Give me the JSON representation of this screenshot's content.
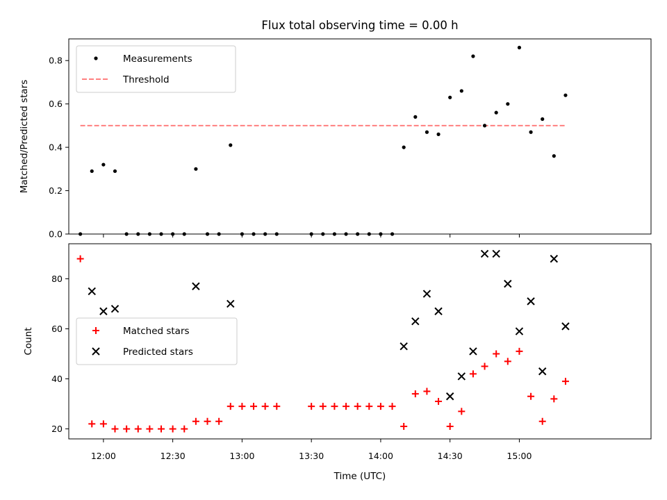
{
  "title": "Flux total observing time = 0.00 h",
  "chart_data": [
    {
      "type": "scatter",
      "ylabel": "Matched/Predicted stars",
      "xlim": [
        "11:45",
        "15:57"
      ],
      "ylim": [
        0,
        0.9
      ],
      "yticks": [
        0.0,
        0.2,
        0.4,
        0.6,
        0.8
      ],
      "ytick_labels": [
        "0.0",
        "0.2",
        "0.4",
        "0.6",
        "0.8"
      ],
      "legend_position": "upper-left",
      "series": [
        {
          "name": "Measurements",
          "marker": "dot",
          "color": "#000000",
          "x": [
            "11:50",
            "11:55",
            "12:00",
            "12:05",
            "12:10",
            "12:15",
            "12:20",
            "12:25",
            "12:30",
            "12:35",
            "12:40",
            "12:45",
            "12:50",
            "12:55",
            "13:00",
            "13:05",
            "13:10",
            "13:15",
            "13:30",
            "13:35",
            "13:40",
            "13:45",
            "13:50",
            "13:55",
            "14:00",
            "14:05",
            "14:10",
            "14:15",
            "14:20",
            "14:25",
            "14:30",
            "14:35",
            "14:40",
            "14:45",
            "14:50",
            "14:55",
            "15:00",
            "15:05",
            "15:10",
            "15:15",
            "15:20"
          ],
          "y": [
            0.0,
            0.29,
            0.32,
            0.29,
            0.0,
            0.0,
            0.0,
            0.0,
            0.0,
            0.0,
            0.3,
            0.0,
            0.0,
            0.41,
            0.0,
            0.0,
            0.0,
            0.0,
            0.0,
            0.0,
            0.0,
            0.0,
            0.0,
            0.0,
            0.0,
            0.0,
            0.4,
            0.54,
            0.47,
            0.46,
            0.63,
            0.66,
            0.82,
            0.5,
            0.56,
            0.6,
            0.86,
            0.47,
            0.53,
            0.36,
            0.64
          ]
        },
        {
          "name": "Threshold",
          "style": "dashed-line",
          "color": "#ff7f7f",
          "x": [
            "11:50",
            "15:20"
          ],
          "y": [
            0.5,
            0.5
          ]
        }
      ]
    },
    {
      "type": "scatter",
      "xlabel": "Time (UTC)",
      "ylabel": "Count",
      "xlim": [
        "11:45",
        "15:57"
      ],
      "ylim": [
        16,
        94
      ],
      "yticks": [
        20,
        40,
        60,
        80
      ],
      "ytick_labels": [
        "20",
        "40",
        "60",
        "80"
      ],
      "xticks": [
        "12:00",
        "12:30",
        "13:00",
        "13:30",
        "14:00",
        "14:30",
        "15:00"
      ],
      "legend_position": "center-left",
      "series": [
        {
          "name": "Matched stars",
          "marker": "plus",
          "color": "#ff0000",
          "x": [
            "11:50",
            "11:55",
            "12:00",
            "12:05",
            "12:10",
            "12:15",
            "12:20",
            "12:25",
            "12:30",
            "12:35",
            "12:40",
            "12:45",
            "12:50",
            "12:55",
            "13:00",
            "13:05",
            "13:10",
            "13:15",
            "13:30",
            "13:35",
            "13:40",
            "13:45",
            "13:50",
            "13:55",
            "14:00",
            "14:05",
            "14:10",
            "14:15",
            "14:20",
            "14:25",
            "14:30",
            "14:35",
            "14:40",
            "14:45",
            "14:50",
            "14:55",
            "15:00",
            "15:05",
            "15:10",
            "15:15",
            "15:20"
          ],
          "y": [
            88,
            22,
            22,
            20,
            20,
            20,
            20,
            20,
            20,
            20,
            23,
            23,
            23,
            29,
            29,
            29,
            29,
            29,
            29,
            29,
            29,
            29,
            29,
            29,
            29,
            29,
            21,
            34,
            35,
            31,
            21,
            27,
            42,
            45,
            50,
            47,
            51,
            33,
            23,
            32,
            39
          ]
        },
        {
          "name": "Predicted stars",
          "marker": "x",
          "color": "#000000",
          "x": [
            "11:55",
            "12:00",
            "12:05",
            "12:40",
            "12:55",
            "14:10",
            "14:15",
            "14:20",
            "14:25",
            "14:30",
            "14:35",
            "14:40",
            "14:45",
            "14:50",
            "14:55",
            "15:00",
            "15:05",
            "15:10",
            "15:15",
            "15:20"
          ],
          "y": [
            75,
            67,
            68,
            77,
            70,
            53,
            63,
            74,
            67,
            33,
            41,
            51,
            90,
            90,
            78,
            59,
            71,
            43,
            88,
            61
          ]
        }
      ]
    }
  ]
}
